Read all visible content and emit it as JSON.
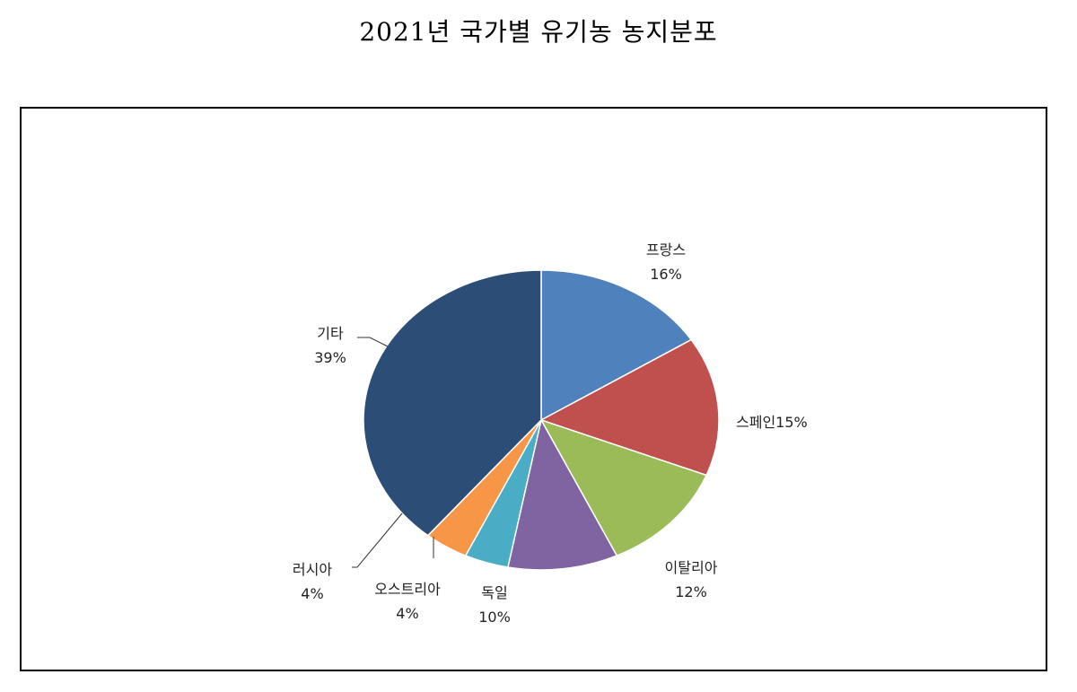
{
  "title": "2021년 국가별 유기농 농지분포",
  "chart_data": {
    "type": "pie",
    "title": "2021년 국가별 유기농 농지분포",
    "slices": [
      {
        "name": "프랑스",
        "label": "16%",
        "value": 16,
        "color": "#4f81bd"
      },
      {
        "name": "스페인",
        "label": "15%",
        "value": 15,
        "color": "#c0504d"
      },
      {
        "name": "이탈리아",
        "label": "12%",
        "value": 12,
        "color": "#9bbb59"
      },
      {
        "name": "독일",
        "label": "10%",
        "value": 10,
        "color": "#8064a2"
      },
      {
        "name": "오스트리아",
        "label": "4%",
        "value": 4,
        "color": "#4bacc6"
      },
      {
        "name": "러시아",
        "label": "4%",
        "value": 4,
        "color": "#f79646"
      },
      {
        "name": "기타",
        "label": "39%",
        "value": 39,
        "color": "#2c4d75"
      }
    ],
    "start": "12 o'clock",
    "direction": "clockwise",
    "legend": "none"
  }
}
